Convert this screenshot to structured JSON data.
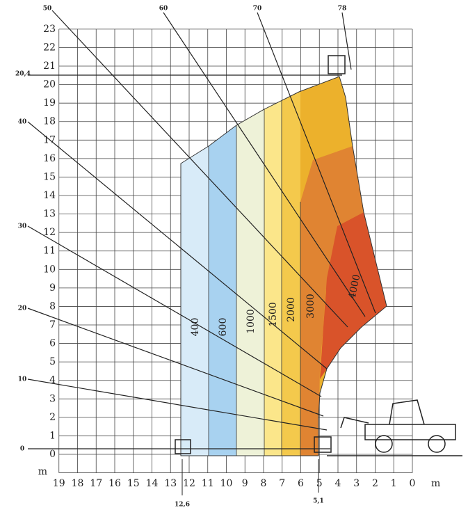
{
  "y_axis": {
    "unit": "m",
    "ticks": [
      0,
      1,
      2,
      3,
      4,
      5,
      6,
      7,
      8,
      9,
      10,
      11,
      12,
      13,
      14,
      15,
      16,
      17,
      18,
      19,
      20,
      21,
      22,
      23
    ]
  },
  "x_axis": {
    "unit": "m",
    "ticks": [
      19,
      18,
      17,
      16,
      15,
      14,
      13,
      12,
      11,
      10,
      9,
      8,
      7,
      6,
      5,
      4,
      3,
      2,
      1,
      0
    ]
  },
  "boom_angles": [
    "0",
    "10",
    "20",
    "30",
    "40",
    "50",
    "60",
    "70",
    "78"
  ],
  "load_zones": [
    "400",
    "600",
    "1000",
    "1500",
    "2000",
    "3000",
    "4000"
  ],
  "annotations": {
    "max_height": "20,4",
    "max_reach": "12,6",
    "min_reach": "5,1"
  }
}
